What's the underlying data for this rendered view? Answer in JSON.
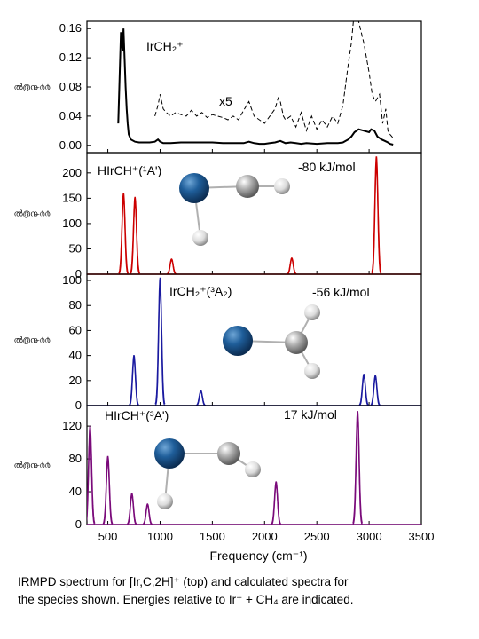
{
  "caption": {
    "line1": "IRMPD spectrum for [Ir,C,2H]⁺ (top) and calculated spectra for",
    "line2": "the species shown.   Energies relative to Ir⁺ + CH₄ are indicated."
  },
  "chart_data": [
    {
      "type": "line",
      "panel_label": "IrCH₂⁺",
      "annotation": "x5",
      "ylabel": "ൽ൫൹൪൪",
      "xlim": [
        300,
        3500
      ],
      "ylim": [
        -0.01,
        0.17
      ],
      "yticks": [
        "0.00",
        "0.04",
        "0.08",
        "0.12",
        "0.16"
      ],
      "color": "#000000",
      "series": [
        {
          "style": "solid",
          "x": [
            600,
            625,
            640,
            650,
            660,
            670,
            680,
            690,
            700,
            720,
            760,
            800,
            850,
            900,
            950,
            980,
            1000,
            1030,
            1100,
            1200,
            1300,
            1400,
            1500,
            1600,
            1700,
            1800,
            1850,
            1900,
            1950,
            2000,
            2050,
            2100,
            2150,
            2200,
            2250,
            2300,
            2350,
            2400,
            2500,
            2600,
            2700,
            2750,
            2800,
            2830,
            2860,
            2900,
            2950,
            3000,
            3020,
            3050,
            3080,
            3120,
            3150,
            3180,
            3200,
            3230
          ],
          "values": [
            0.03,
            0.155,
            0.13,
            0.16,
            0.12,
            0.08,
            0.05,
            0.03,
            0.015,
            0.008,
            0.005,
            0.004,
            0.004,
            0.004,
            0.005,
            0.008,
            0.005,
            0.003,
            0.003,
            0.004,
            0.004,
            0.004,
            0.004,
            0.003,
            0.003,
            0.003,
            0.005,
            0.003,
            0.002,
            0.002,
            0.003,
            0.004,
            0.006,
            0.003,
            0.004,
            0.003,
            0.002,
            0.003,
            0.002,
            0.003,
            0.003,
            0.004,
            0.008,
            0.012,
            0.018,
            0.022,
            0.02,
            0.018,
            0.022,
            0.02,
            0.012,
            0.008,
            0.006,
            0.004,
            0.002,
            0.001
          ]
        },
        {
          "style": "dashed",
          "x": [
            950,
            980,
            1000,
            1030,
            1060,
            1100,
            1150,
            1200,
            1250,
            1300,
            1350,
            1400,
            1450,
            1500,
            1550,
            1600,
            1650,
            1700,
            1750,
            1800,
            1850,
            1900,
            1950,
            2000,
            2050,
            2100,
            2130,
            2150,
            2180,
            2200,
            2250,
            2300,
            2350,
            2400,
            2450,
            2500,
            2550,
            2600,
            2650,
            2700,
            2750,
            2800,
            2830,
            2850,
            2870,
            2900,
            2950,
            3000,
            3030,
            3060,
            3100,
            3130,
            3160,
            3180,
            3200,
            3230
          ],
          "values": [
            0.04,
            0.055,
            0.07,
            0.05,
            0.045,
            0.04,
            0.045,
            0.042,
            0.04,
            0.048,
            0.04,
            0.045,
            0.038,
            0.042,
            0.04,
            0.038,
            0.035,
            0.04,
            0.035,
            0.048,
            0.06,
            0.04,
            0.035,
            0.03,
            0.04,
            0.05,
            0.065,
            0.06,
            0.04,
            0.035,
            0.04,
            0.025,
            0.045,
            0.02,
            0.04,
            0.022,
            0.035,
            0.025,
            0.04,
            0.03,
            0.055,
            0.11,
            0.14,
            0.17,
            0.17,
            0.17,
            0.14,
            0.1,
            0.07,
            0.06,
            0.07,
            0.03,
            0.05,
            0.02,
            0.015,
            0.01
          ]
        }
      ]
    },
    {
      "type": "line",
      "panel_label": "HIrCH⁺(¹A')",
      "energy": "-80 kJ/mol",
      "ylabel": "ൽ൫൹൪൪",
      "xlim": [
        300,
        3500
      ],
      "ylim": [
        0,
        240
      ],
      "yticks": [
        "0",
        "50",
        "100",
        "150",
        "200"
      ],
      "color": "#cc0000",
      "peaks": [
        {
          "x": 650,
          "y": 160
        },
        {
          "x": 760,
          "y": 152
        },
        {
          "x": 1110,
          "y": 30
        },
        {
          "x": 2260,
          "y": 32
        },
        {
          "x": 3070,
          "y": 232
        }
      ]
    },
    {
      "type": "line",
      "panel_label": "IrCH₂⁺(³A₂)",
      "energy": "-56 kJ/mol",
      "ylabel": "ൽ൫൹൪൪",
      "xlim": [
        300,
        3500
      ],
      "ylim": [
        0,
        105
      ],
      "yticks": [
        "0",
        "20",
        "40",
        "60",
        "80",
        "100"
      ],
      "color": "#1a1aa0",
      "peaks": [
        {
          "x": 750,
          "y": 40
        },
        {
          "x": 1000,
          "y": 102
        },
        {
          "x": 1390,
          "y": 12
        },
        {
          "x": 2950,
          "y": 25
        },
        {
          "x": 3060,
          "y": 24
        }
      ]
    },
    {
      "type": "line",
      "panel_label": "HIrCH⁺(³A')",
      "energy": "17 kJ/mol",
      "ylabel": "ൽ൫൹൪൪",
      "xlabel": "Frequency (cm⁻¹)",
      "xlim": [
        300,
        3500
      ],
      "ylim": [
        0,
        145
      ],
      "yticks": [
        "0",
        "40",
        "80",
        "120"
      ],
      "xticks": [
        "500",
        "1000",
        "1500",
        "2000",
        "2500",
        "3000",
        "3500"
      ],
      "color": "#7a0a7a",
      "peaks": [
        {
          "x": 330,
          "y": 120
        },
        {
          "x": 500,
          "y": 83
        },
        {
          "x": 730,
          "y": 38
        },
        {
          "x": 880,
          "y": 25
        },
        {
          "x": 2110,
          "y": 52
        },
        {
          "x": 2890,
          "y": 138
        }
      ]
    }
  ]
}
